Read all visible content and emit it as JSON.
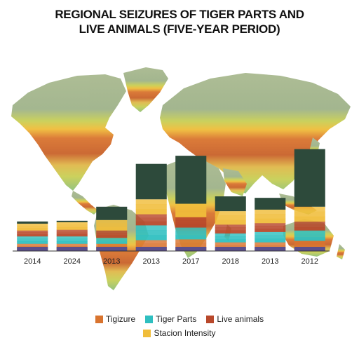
{
  "colors": {
    "tigizure": "#d9742f",
    "tiger_parts": "#2fbfc0",
    "live_animals": "#b8482b",
    "stacion_intensity": "#f0bd3a",
    "seizure_totals": "#2d4a3b",
    "map_cold": "#9fb38a",
    "map_hot": "#cf6a2a",
    "ocean": "#ffffff"
  },
  "chart_data": {
    "type": "bar",
    "title": "REGIONAL SEIZURES OF TIGER PARTS AND LIVE ANIMALS (FIVE-YEAR PERIOD)",
    "title_lines": [
      "REGIONAL SEIZURES OF TIGER PARTS AND",
      "LIVE ANIMALS (FIVE-YEAR PERIOD)"
    ],
    "categories": [
      "2014",
      "2024",
      "2013",
      "2013",
      "2017",
      "2018",
      "2013",
      "2012"
    ],
    "ylim": [
      0,
      150
    ],
    "grid": false,
    "legend_position": "bottom",
    "series": [
      {
        "name": "Tigizure",
        "values": [
          10,
          10,
          10,
          15,
          16,
          12,
          12,
          14
        ]
      },
      {
        "name": "Tiger Parts",
        "values": [
          10,
          10,
          8,
          20,
          16,
          12,
          14,
          14
        ]
      },
      {
        "name": "Live animals",
        "values": [
          8,
          9,
          10,
          15,
          14,
          12,
          12,
          12
        ]
      },
      {
        "name": "Stacion Intensity",
        "values": [
          9,
          10,
          14,
          20,
          18,
          18,
          18,
          20
        ]
      },
      {
        "name": "",
        "values": [
          3,
          2,
          18,
          48,
          65,
          20,
          16,
          78
        ]
      }
    ],
    "legend": {
      "rows": [
        [
          "Tigizure",
          "Tiger Parts",
          "Live animals"
        ],
        [
          "Stacion Intensity"
        ]
      ]
    }
  }
}
